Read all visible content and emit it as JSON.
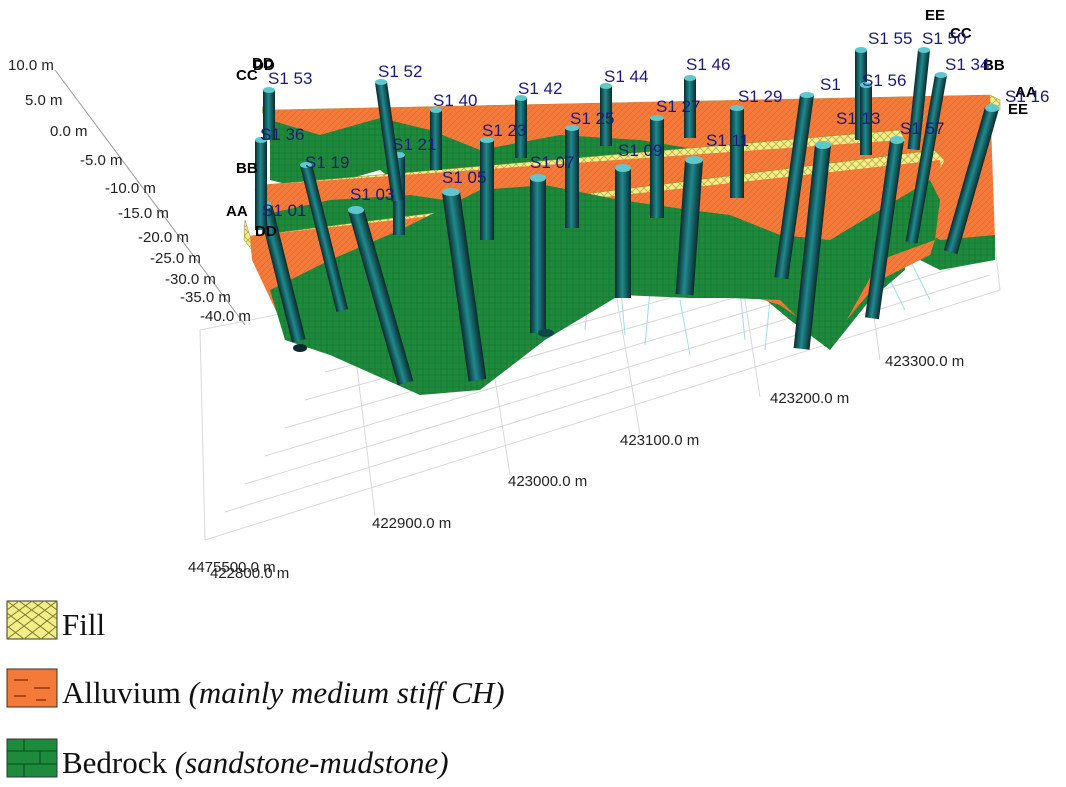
{
  "diagram": {
    "depth_axis": [
      "10.0 m",
      "5.0 m",
      "0.0 m",
      "-5.0 m",
      "-10.0 m",
      "-15.0 m",
      "-20.0 m",
      "-25.0 m",
      "-30.0 m",
      "-35.0 m",
      "-40.0 m"
    ],
    "easting_axis": [
      "422800.0 m",
      "422900.0 m",
      "423000.0 m",
      "423100.0 m",
      "423200.0 m",
      "423300.0 m"
    ],
    "northing_label": "4475500.0 m",
    "section_labels": [
      "AA",
      "BB",
      "CC",
      "DD",
      "EE",
      "AA",
      "BB",
      "CC",
      "DD",
      "EE",
      "DD"
    ],
    "boreholes": [
      "S1 01",
      "S1 03",
      "S1 05",
      "S1 07",
      "S1 09",
      "S1 11",
      "S1 13",
      "S1 57",
      "S1 16",
      "S1 19",
      "S1 21",
      "S1 23",
      "S1 25",
      "S1 27",
      "S1 29",
      "S1 36",
      "S1 40",
      "S1 42",
      "S1 44",
      "S1 46",
      "S1 52",
      "S1 53",
      "S1 55",
      "S1 50",
      "S1 34",
      "S1 56",
      "S1"
    ]
  },
  "legend": [
    {
      "name": "Fill",
      "note": "",
      "color": "#f3ee8a"
    },
    {
      "name": "Alluvium",
      "note": "(mainly medium stiff CH)",
      "color": "#f47a3a"
    },
    {
      "name": "Bedrock",
      "note": "(sandstone-mudstone)",
      "color": "#1e8a3c"
    }
  ],
  "colors": {
    "fill": "#f3ee8a",
    "alluvium": "#f47a3a",
    "bedrock": "#1e8a3c",
    "borehole": "#1d6f73",
    "grid": "#d8d8d8",
    "label": "#1a1a80"
  }
}
